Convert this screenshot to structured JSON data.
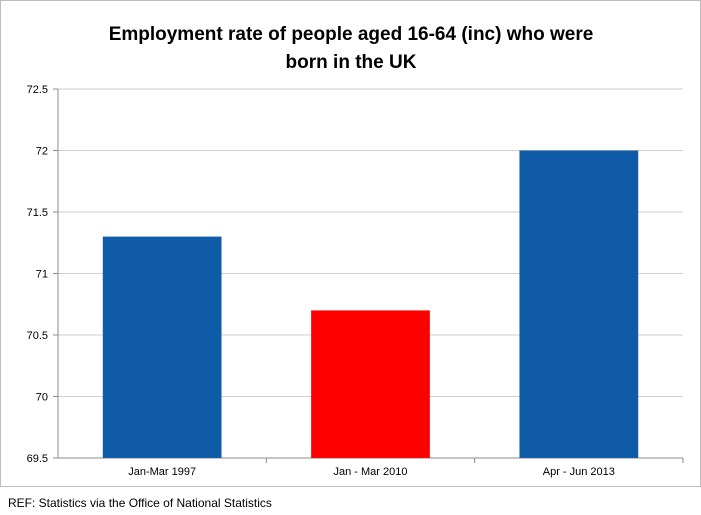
{
  "chart_data": {
    "type": "bar",
    "title_lines": [
      "Employment rate of people aged 16-64 (inc)  who were",
      "born in the UK"
    ],
    "xlabel": "",
    "ylabel": "",
    "categories": [
      "Jan-Mar 1997",
      "Jan - Mar 2010",
      "Apr - Jun 2013"
    ],
    "values": [
      71.3,
      70.7,
      72.0
    ],
    "bar_colors": [
      "#0f5ba7",
      "#ff0000",
      "#0f5ba7"
    ],
    "ylim": [
      69.5,
      72.5
    ],
    "yticks": [
      "69.5",
      "70",
      "70.5",
      "71",
      "71.5",
      "72",
      "72.5"
    ],
    "grid": true,
    "legend": "none"
  },
  "source": "REF: Statistics via the Office of National Statistics",
  "colors": {
    "gridline": "#cfcfcf",
    "axis": "#8c8c8c"
  }
}
